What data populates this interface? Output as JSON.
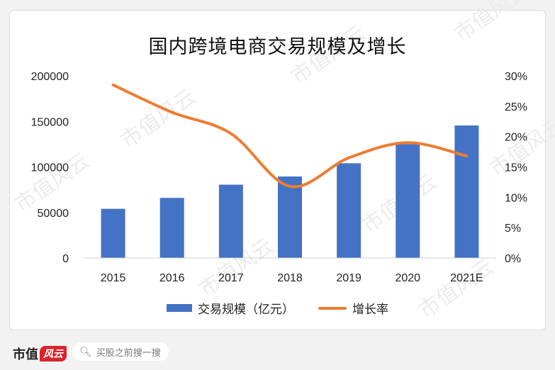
{
  "chart_data": {
    "type": "bar+line",
    "title": "国内跨境电商交易规模及增长",
    "categories": [
      "2015",
      "2016",
      "2017",
      "2018",
      "2019",
      "2020",
      "2021E"
    ],
    "series": [
      {
        "name": "交易规模（亿元）",
        "type": "bar",
        "axis": "left",
        "color": "#4472c4",
        "values": [
          54000,
          66000,
          80500,
          89500,
          104000,
          125000,
          145500
        ]
      },
      {
        "name": "增长率",
        "type": "line",
        "axis": "right",
        "color": "#ed7d31",
        "values": [
          28.5,
          24,
          20.5,
          11.8,
          16.5,
          19,
          16.8
        ]
      }
    ],
    "y_left": {
      "min": 0,
      "max": 200000,
      "ticks": [
        "0",
        "50000",
        "100000",
        "150000",
        "200000"
      ]
    },
    "y_right": {
      "min": 0,
      "max": 30,
      "ticks": [
        "0%",
        "5%",
        "10%",
        "15%",
        "20%",
        "25%",
        "30%"
      ]
    },
    "legend_position": "bottom",
    "grid": false
  },
  "footer": {
    "brand_text": "市值",
    "brand_mark": "风云",
    "search_placeholder": "买股之前搜一搜"
  },
  "watermark": "市值风云"
}
